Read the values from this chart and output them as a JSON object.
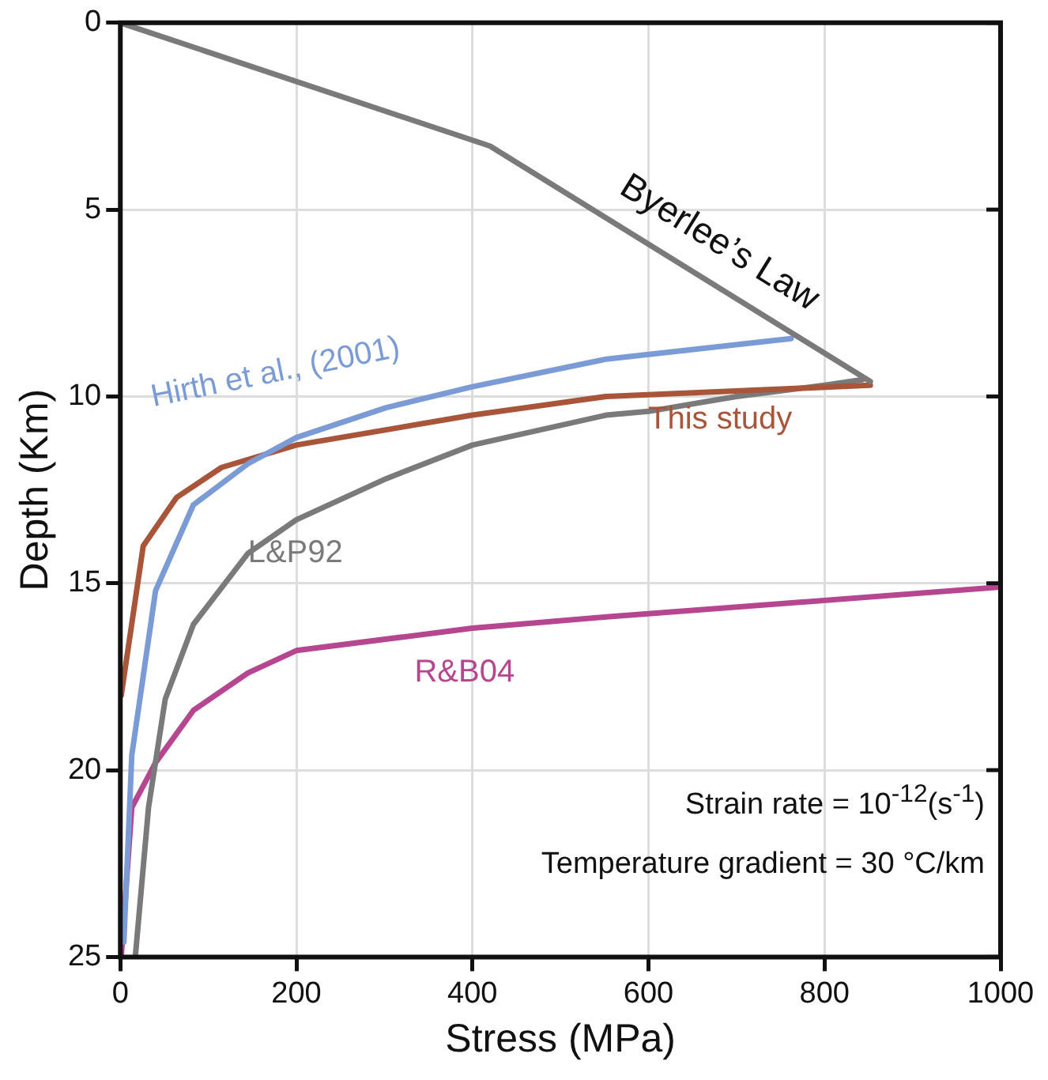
{
  "chart_data": {
    "type": "line",
    "xlabel": "Stress (MPa)",
    "ylabel": "Depth (Km)",
    "xlim": [
      0,
      1000
    ],
    "xticks": [
      0,
      200,
      400,
      600,
      800,
      1000
    ],
    "ylim": [
      25,
      0
    ],
    "yticks": [
      0,
      5,
      10,
      15,
      20,
      25
    ],
    "grid": true,
    "legend": false,
    "marker": "none",
    "line_style": "solid",
    "annotations": [
      "Strain rate  = 10$^{-12}$(s$^{-1}$)",
      "Temperature gradient = 30 °C/km"
    ],
    "series": [
      {
        "name": "Byerlee’s Law",
        "color": "#7a7a7a",
        "x": [
          0,
          420,
          852
        ],
        "values": [
          0,
          3.3,
          9.6
        ]
      },
      {
        "name": "Hirth et al., (2001)",
        "color": "#7b9bd6",
        "x": [
          4,
          13,
          40,
          83,
          145,
          200,
          302,
          400,
          552,
          762
        ],
        "values": [
          24.6,
          19.6,
          15.2,
          12.9,
          11.8,
          11.1,
          10.3,
          9.74,
          9.0,
          8.45
        ]
      },
      {
        "name": "This study",
        "color": "#a8553a",
        "x": [
          1,
          26,
          64,
          115,
          200,
          400,
          552,
          852
        ],
        "values": [
          18,
          14,
          12.7,
          11.9,
          11.3,
          10.5,
          10.0,
          9.7
        ]
      },
      {
        "name": "L&P92",
        "color": "#7a7a7a",
        "x": [
          17,
          32,
          51,
          83,
          145,
          200,
          302,
          400,
          552,
          600,
          700,
          800,
          843
        ],
        "values": [
          25,
          21,
          18.1,
          16.1,
          14.2,
          13.3,
          12.2,
          11.3,
          10.5,
          10.4,
          10.0,
          9.7,
          9.55
        ]
      },
      {
        "name": "R&B04",
        "color": "#b5468f",
        "x": [
          1,
          13,
          40,
          83,
          145,
          200,
          400,
          552,
          1000
        ],
        "values": [
          25,
          21,
          19.8,
          18.4,
          17.4,
          16.8,
          16.2,
          15.9,
          15.1
        ]
      }
    ]
  }
}
